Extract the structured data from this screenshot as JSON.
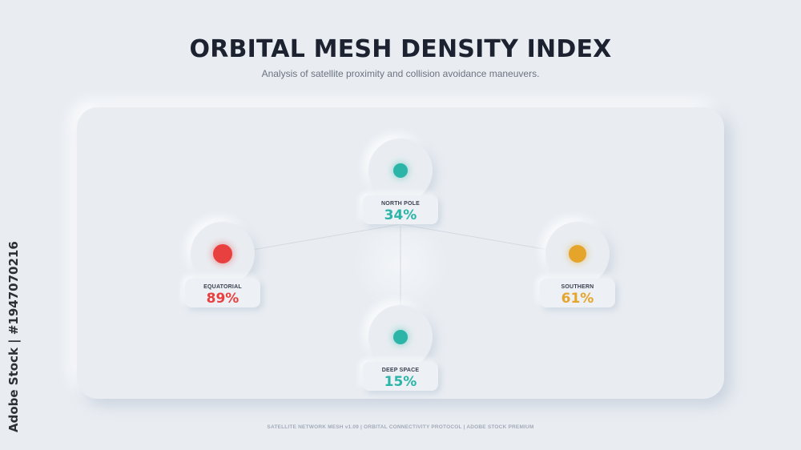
{
  "header": {
    "title": "ORBITAL MESH DENSITY INDEX",
    "subtitle": "Analysis of satellite proximity and collision avoidance maneuvers."
  },
  "nodes": {
    "north": {
      "name": "NORTH POLE",
      "value": "34%",
      "color": "#2bb5a8"
    },
    "equatorial": {
      "name": "EQUATORIAL",
      "value": "89%",
      "color": "#e8403f"
    },
    "southern": {
      "name": "SOUTHERN",
      "value": "61%",
      "color": "#e4a52a"
    },
    "deep": {
      "name": "DEEP SPACE",
      "value": "15%",
      "color": "#2bb5a8"
    }
  },
  "footer": {
    "text": "SATELLITE NETWORK MESH v1.09 | ORBITAL CONNECTIVITY PROTOCOL | ADOBE STOCK PREMIUM"
  },
  "watermark": {
    "side_text": "Adobe Stock | #1947070216"
  }
}
